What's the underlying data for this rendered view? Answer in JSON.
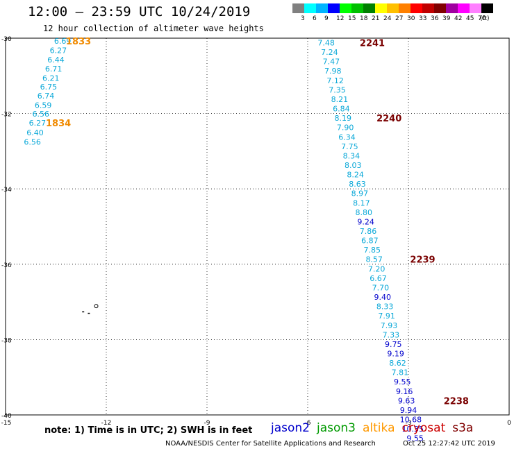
{
  "header": {
    "title": "12:00 – 23:59 UTC 10/24/2019",
    "subtitle": "12 hour collection of altimeter wave heights"
  },
  "legend": {
    "colors": [
      "#808080",
      "#00ffff",
      "#00b4ff",
      "#0000ff",
      "#00ff00",
      "#00c000",
      "#008000",
      "#ffff00",
      "#ffc000",
      "#ff8000",
      "#ff0000",
      "#c00000",
      "#800000",
      "#a000a0",
      "#ff00ff",
      "#ff80ff",
      "#000000"
    ],
    "labels": [
      "3",
      "6",
      "9",
      "12",
      "15",
      "18",
      "21",
      "24",
      "27",
      "30",
      "33",
      "36",
      "39",
      "42",
      "45",
      "70",
      "(ft)"
    ]
  },
  "map": {
    "lon_range": [
      -15,
      0
    ],
    "lat_range": [
      -40,
      -30
    ],
    "x_ticks": [
      {
        "value": -15,
        "label": "-15"
      },
      {
        "value": -12,
        "label": "-12"
      },
      {
        "value": -9,
        "label": "-9"
      },
      {
        "value": -6,
        "label": "-6"
      },
      {
        "value": -3,
        "label": "-3"
      },
      {
        "value": 0,
        "label": "0"
      }
    ],
    "y_ticks": [
      {
        "value": -30,
        "label": "-30"
      },
      {
        "value": -32,
        "label": "-32"
      },
      {
        "value": -34,
        "label": "-34"
      },
      {
        "value": -36,
        "label": "-36"
      },
      {
        "value": -38,
        "label": "-38"
      },
      {
        "value": -40,
        "label": "-40"
      }
    ],
    "island_markers": [
      {
        "lon": -12.3,
        "lat": -37.11
      },
      {
        "lon": -12.55,
        "lat": -37.29
      },
      {
        "lon": -12.72,
        "lat": -37.25
      }
    ],
    "tracks": [
      {
        "points": [
          {
            "lon": -13.3,
            "lat": -30.07,
            "value": "6.69",
            "color": "#0aa8d8"
          },
          {
            "lon": -13.43,
            "lat": -30.32,
            "value": "6.27",
            "color": "#0aa8d8"
          },
          {
            "lon": -13.5,
            "lat": -30.57,
            "value": "6.44",
            "color": "#0aa8d8"
          },
          {
            "lon": -13.57,
            "lat": -30.81,
            "value": "6.71",
            "color": "#0aa8d8"
          },
          {
            "lon": -13.65,
            "lat": -31.06,
            "value": "6.21",
            "color": "#0aa8d8"
          },
          {
            "lon": -13.72,
            "lat": -31.29,
            "value": "6.75",
            "color": "#0aa8d8"
          },
          {
            "lon": -13.8,
            "lat": -31.53,
            "value": "6.74",
            "color": "#0aa8d8"
          },
          {
            "lon": -13.88,
            "lat": -31.78,
            "value": "6.59",
            "color": "#0aa8d8"
          },
          {
            "lon": -13.95,
            "lat": -32.01,
            "value": "6.56",
            "color": "#0aa8d8"
          },
          {
            "lon": -14.05,
            "lat": -32.25,
            "value": "6.27",
            "color": "#0aa8d8"
          },
          {
            "lon": -14.12,
            "lat": -32.5,
            "value": "6.40",
            "color": "#0aa8d8"
          },
          {
            "lon": -14.2,
            "lat": -32.75,
            "value": "6.56",
            "color": "#0aa8d8"
          }
        ],
        "times": [
          {
            "lon": -13.2,
            "lat": -30.07,
            "label": "1833",
            "color": "#f08a00"
          },
          {
            "lon": -13.8,
            "lat": -32.25,
            "label": "1834",
            "color": "#f08a00"
          }
        ]
      },
      {
        "points": [
          {
            "lon": -5.45,
            "lat": -30.12,
            "value": "7.48",
            "color": "#0aa8d8"
          },
          {
            "lon": -5.35,
            "lat": -30.37,
            "value": "7.24",
            "color": "#0aa8d8"
          },
          {
            "lon": -5.3,
            "lat": -30.62,
            "value": "7.47",
            "color": "#0aa8d8"
          },
          {
            "lon": -5.25,
            "lat": -30.87,
            "value": "7.98",
            "color": "#0aa8d8"
          },
          {
            "lon": -5.18,
            "lat": -31.12,
            "value": "7.12",
            "color": "#0aa8d8"
          },
          {
            "lon": -5.12,
            "lat": -31.37,
            "value": "7.35",
            "color": "#0aa8d8"
          },
          {
            "lon": -5.05,
            "lat": -31.62,
            "value": "8.21",
            "color": "#0aa8d8"
          },
          {
            "lon": -5.0,
            "lat": -31.87,
            "value": "6.84",
            "color": "#0aa8d8"
          },
          {
            "lon": -4.95,
            "lat": -32.12,
            "value": "8.19",
            "color": "#0aa8d8"
          },
          {
            "lon": -4.88,
            "lat": -32.37,
            "value": "7.90",
            "color": "#0aa8d8"
          },
          {
            "lon": -4.83,
            "lat": -32.62,
            "value": "6.34",
            "color": "#0aa8d8"
          },
          {
            "lon": -4.75,
            "lat": -32.87,
            "value": "7.75",
            "color": "#0aa8d8"
          },
          {
            "lon": -4.7,
            "lat": -33.12,
            "value": "8.34",
            "color": "#0aa8d8"
          },
          {
            "lon": -4.65,
            "lat": -33.37,
            "value": "8.03",
            "color": "#0aa8d8"
          },
          {
            "lon": -4.58,
            "lat": -33.62,
            "value": "8.24",
            "color": "#0aa8d8"
          },
          {
            "lon": -4.52,
            "lat": -33.87,
            "value": "8.63",
            "color": "#0aa8d8"
          },
          {
            "lon": -4.45,
            "lat": -34.12,
            "value": "8.97",
            "color": "#0aa8d8"
          },
          {
            "lon": -4.4,
            "lat": -34.37,
            "value": "8.17",
            "color": "#0aa8d8"
          },
          {
            "lon": -4.33,
            "lat": -34.62,
            "value": "8.80",
            "color": "#0aa8d8"
          },
          {
            "lon": -4.27,
            "lat": -34.87,
            "value": "9.24",
            "color": "#0000cc"
          },
          {
            "lon": -4.2,
            "lat": -35.12,
            "value": "7.86",
            "color": "#0aa8d8"
          },
          {
            "lon": -4.15,
            "lat": -35.37,
            "value": "6.87",
            "color": "#0aa8d8"
          },
          {
            "lon": -4.08,
            "lat": -35.62,
            "value": "7.85",
            "color": "#0aa8d8"
          },
          {
            "lon": -4.02,
            "lat": -35.87,
            "value": "8.57",
            "color": "#0aa8d8"
          },
          {
            "lon": -3.95,
            "lat": -36.12,
            "value": "7.20",
            "color": "#0aa8d8"
          },
          {
            "lon": -3.9,
            "lat": -36.37,
            "value": "6.67",
            "color": "#0aa8d8"
          },
          {
            "lon": -3.83,
            "lat": -36.62,
            "value": "7.70",
            "color": "#0aa8d8"
          },
          {
            "lon": -3.77,
            "lat": -36.87,
            "value": "9.40",
            "color": "#0000cc"
          },
          {
            "lon": -3.7,
            "lat": -37.12,
            "value": "8.33",
            "color": "#0aa8d8"
          },
          {
            "lon": -3.65,
            "lat": -37.37,
            "value": "7.91",
            "color": "#0aa8d8"
          },
          {
            "lon": -3.58,
            "lat": -37.62,
            "value": "7.93",
            "color": "#0aa8d8"
          },
          {
            "lon": -3.52,
            "lat": -37.87,
            "value": "7.33",
            "color": "#0aa8d8"
          },
          {
            "lon": -3.45,
            "lat": -38.12,
            "value": "9.75",
            "color": "#0000cc"
          },
          {
            "lon": -3.38,
            "lat": -38.37,
            "value": "9.19",
            "color": "#0000cc"
          },
          {
            "lon": -3.32,
            "lat": -38.62,
            "value": "8.62",
            "color": "#0aa8d8"
          },
          {
            "lon": -3.25,
            "lat": -38.87,
            "value": "7.81",
            "color": "#0aa8d8"
          },
          {
            "lon": -3.18,
            "lat": -39.12,
            "value": "9.55",
            "color": "#0000cc"
          },
          {
            "lon": -3.12,
            "lat": -39.37,
            "value": "9.16",
            "color": "#0000cc"
          },
          {
            "lon": -3.06,
            "lat": -39.62,
            "value": "9.63",
            "color": "#0000cc"
          },
          {
            "lon": -3.0,
            "lat": -39.87,
            "value": "9.94",
            "color": "#0000cc"
          },
          {
            "lon": -2.93,
            "lat": -40.12,
            "value": "10.68",
            "color": "#0000cc"
          },
          {
            "lon": -2.87,
            "lat": -40.37,
            "value": "10.35",
            "color": "#0000cc"
          },
          {
            "lon": -2.8,
            "lat": -40.62,
            "value": "9.55",
            "color": "#0000cc"
          }
        ],
        "times": [
          {
            "lon": -4.45,
            "lat": -30.12,
            "label": "2241",
            "color": "#7a0000"
          },
          {
            "lon": -3.95,
            "lat": -32.12,
            "label": "2240",
            "color": "#7a0000"
          },
          {
            "lon": -2.95,
            "lat": -35.87,
            "label": "2239",
            "color": "#7a0000"
          },
          {
            "lon": -1.95,
            "lat": -39.62,
            "label": "2238",
            "color": "#7a0000"
          }
        ]
      }
    ]
  },
  "footer": {
    "note": "note:  1) Time is in UTC;  2) SWH is in feet",
    "satellites": [
      {
        "name": "jason2",
        "color": "#0000cc"
      },
      {
        "name": "jason3",
        "color": "#009a00"
      },
      {
        "name": "altika",
        "color": "#ff9900"
      },
      {
        "name": "cryosat",
        "color": "#cc0000"
      },
      {
        "name": "s3a",
        "color": "#800000"
      }
    ],
    "credit": "NOAA/NESDIS Center for Satellite Applications and Research",
    "timestamp": "Oct 25 12:27:42 UTC 2019"
  }
}
